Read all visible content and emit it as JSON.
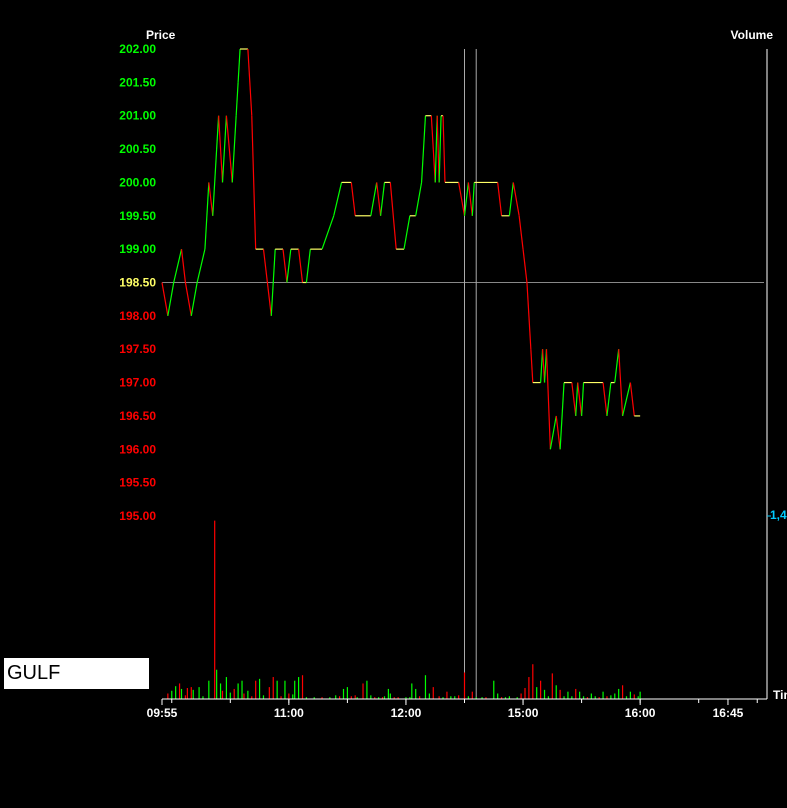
{
  "chart_data": {
    "type": "line",
    "title": "",
    "ylabel": "Price",
    "y2label": "Volume",
    "xlabel": "Time",
    "xlabel_visible": "Tim",
    "ylim": [
      195.0,
      202.0
    ],
    "y_ticks": [
      {
        "value": 202.0,
        "label": "202.00",
        "color": "#00ff00"
      },
      {
        "value": 201.5,
        "label": "201.50",
        "color": "#00ff00"
      },
      {
        "value": 201.0,
        "label": "201.00",
        "color": "#00ff00"
      },
      {
        "value": 200.5,
        "label": "200.50",
        "color": "#00ff00"
      },
      {
        "value": 200.0,
        "label": "200.00",
        "color": "#00ff00"
      },
      {
        "value": 199.5,
        "label": "199.50",
        "color": "#00ff00"
      },
      {
        "value": 199.0,
        "label": "199.00",
        "color": "#00ff00"
      },
      {
        "value": 198.5,
        "label": "198.50",
        "color": "#ffff66"
      },
      {
        "value": 198.0,
        "label": "198.00",
        "color": "#ff0000"
      },
      {
        "value": 197.5,
        "label": "197.50",
        "color": "#ff0000"
      },
      {
        "value": 197.0,
        "label": "197.00",
        "color": "#ff0000"
      },
      {
        "value": 196.5,
        "label": "196.50",
        "color": "#ff0000"
      },
      {
        "value": 196.0,
        "label": "196.00",
        "color": "#ff0000"
      },
      {
        "value": 195.5,
        "label": "195.50",
        "color": "#ff0000"
      },
      {
        "value": 195.0,
        "label": "195.00",
        "color": "#ff0000"
      }
    ],
    "reference_price": 198.5,
    "x_ticks": [
      {
        "minute": 0,
        "label": "09:55"
      },
      {
        "minute": 65,
        "label": "11:00"
      },
      {
        "minute": 125,
        "label": "12:00"
      },
      {
        "minute": 185,
        "label": "15:00"
      },
      {
        "minute": 245,
        "label": "16:00"
      },
      {
        "minute": 290,
        "label": "16:45"
      }
    ],
    "x_minute_range": [
      0,
      310
    ],
    "volume_tick_label": "1,4",
    "volume_max": 2000,
    "cursor_minutes": [
      155,
      161
    ],
    "colors": {
      "up": "#00ff00",
      "down": "#ff0000",
      "flat": "#ffff66",
      "axis": "#ffffff",
      "reference_line": "#888888",
      "volume_label": "#00ccff"
    },
    "price_series": [
      [
        0,
        198.5
      ],
      [
        3,
        198.0
      ],
      [
        6,
        198.5
      ],
      [
        10,
        199.0
      ],
      [
        12,
        198.5
      ],
      [
        15,
        198.0
      ],
      [
        18,
        198.5
      ],
      [
        22,
        199.0
      ],
      [
        24,
        200.0
      ],
      [
        26,
        199.5
      ],
      [
        28,
        200.5
      ],
      [
        29,
        201.0
      ],
      [
        31,
        200.0
      ],
      [
        33,
        201.0
      ],
      [
        36,
        200.0
      ],
      [
        38,
        201.0
      ],
      [
        39,
        201.5
      ],
      [
        40,
        202.0
      ],
      [
        44,
        202.0
      ],
      [
        46,
        201.0
      ],
      [
        48,
        199.0
      ],
      [
        52,
        199.0
      ],
      [
        56,
        198.0
      ],
      [
        58,
        199.0
      ],
      [
        62,
        199.0
      ],
      [
        64,
        198.5
      ],
      [
        66,
        199.0
      ],
      [
        70,
        199.0
      ],
      [
        72,
        198.5
      ],
      [
        74,
        198.5
      ],
      [
        76,
        199.0
      ],
      [
        82,
        199.0
      ],
      [
        88,
        199.5
      ],
      [
        92,
        200.0
      ],
      [
        97,
        200.0
      ],
      [
        99,
        199.5
      ],
      [
        107,
        199.5
      ],
      [
        110,
        200.0
      ],
      [
        112,
        199.5
      ],
      [
        114,
        200.0
      ],
      [
        117,
        200.0
      ],
      [
        120,
        199.0
      ],
      [
        124,
        199.0
      ],
      [
        127,
        199.5
      ],
      [
        130,
        199.5
      ],
      [
        133,
        200.0
      ],
      [
        135,
        201.0
      ],
      [
        138,
        201.0
      ],
      [
        139,
        200.5
      ],
      [
        140,
        200.0
      ],
      [
        141,
        201.0
      ],
      [
        142,
        200.0
      ],
      [
        143,
        201.0
      ],
      [
        144,
        201.0
      ],
      [
        145,
        200.0
      ],
      [
        152,
        200.0
      ],
      [
        155,
        199.5
      ],
      [
        157,
        200.0
      ],
      [
        159,
        199.5
      ],
      [
        160,
        200.0
      ],
      [
        172,
        200.0
      ],
      [
        174,
        199.5
      ],
      [
        178,
        199.5
      ],
      [
        180,
        200.0
      ],
      [
        183,
        199.5
      ],
      [
        185,
        199.0
      ],
      [
        187,
        198.5
      ],
      [
        189,
        197.5
      ],
      [
        190,
        197.0
      ],
      [
        194,
        197.0
      ],
      [
        195,
        197.5
      ],
      [
        196,
        197.0
      ],
      [
        197,
        197.5
      ],
      [
        199,
        196.0
      ],
      [
        202,
        196.5
      ],
      [
        204,
        196.0
      ],
      [
        206,
        197.0
      ],
      [
        210,
        197.0
      ],
      [
        212,
        196.5
      ],
      [
        213,
        197.0
      ],
      [
        215,
        196.5
      ],
      [
        216,
        197.0
      ],
      [
        226,
        197.0
      ],
      [
        228,
        196.5
      ],
      [
        230,
        197.0
      ],
      [
        232,
        197.0
      ],
      [
        234,
        197.5
      ],
      [
        236,
        196.5
      ],
      [
        240,
        197.0
      ],
      [
        242,
        196.5
      ],
      [
        245,
        196.5
      ]
    ],
    "volume_series": [
      [
        3,
        60
      ],
      [
        5,
        90
      ],
      [
        7,
        140
      ],
      [
        9,
        170
      ],
      [
        10,
        110
      ],
      [
        12,
        40
      ],
      [
        13,
        120
      ],
      [
        15,
        130
      ],
      [
        16,
        100
      ],
      [
        19,
        130
      ],
      [
        21,
        30
      ],
      [
        24,
        200
      ],
      [
        27,
        1950
      ],
      [
        28,
        320
      ],
      [
        30,
        170
      ],
      [
        31,
        90
      ],
      [
        33,
        240
      ],
      [
        35,
        70
      ],
      [
        37,
        110
      ],
      [
        39,
        170
      ],
      [
        41,
        200
      ],
      [
        42,
        60
      ],
      [
        44,
        90
      ],
      [
        46,
        30
      ],
      [
        48,
        200
      ],
      [
        50,
        220
      ],
      [
        52,
        40
      ],
      [
        55,
        130
      ],
      [
        57,
        240
      ],
      [
        59,
        200
      ],
      [
        61,
        30
      ],
      [
        63,
        200
      ],
      [
        65,
        60
      ],
      [
        67,
        50
      ],
      [
        68,
        200
      ],
      [
        70,
        240
      ],
      [
        72,
        260
      ],
      [
        74,
        20
      ],
      [
        78,
        20
      ],
      [
        82,
        20
      ],
      [
        86,
        20
      ],
      [
        89,
        40
      ],
      [
        91,
        30
      ],
      [
        93,
        110
      ],
      [
        95,
        130
      ],
      [
        97,
        30
      ],
      [
        99,
        40
      ],
      [
        100,
        20
      ],
      [
        103,
        170
      ],
      [
        105,
        200
      ],
      [
        107,
        40
      ],
      [
        109,
        20
      ],
      [
        111,
        20
      ],
      [
        113,
        20
      ],
      [
        114,
        30
      ],
      [
        116,
        110
      ],
      [
        117,
        60
      ],
      [
        119,
        20
      ],
      [
        121,
        20
      ],
      [
        125,
        20
      ],
      [
        127,
        20
      ],
      [
        128,
        170
      ],
      [
        130,
        110
      ],
      [
        132,
        30
      ],
      [
        135,
        260
      ],
      [
        137,
        60
      ],
      [
        139,
        130
      ],
      [
        142,
        30
      ],
      [
        144,
        20
      ],
      [
        146,
        80
      ],
      [
        148,
        30
      ],
      [
        150,
        30
      ],
      [
        152,
        40
      ],
      [
        155,
        290
      ],
      [
        157,
        30
      ],
      [
        159,
        80
      ],
      [
        161,
        20
      ],
      [
        164,
        20
      ],
      [
        166,
        20
      ],
      [
        170,
        200
      ],
      [
        172,
        60
      ],
      [
        174,
        20
      ],
      [
        176,
        20
      ],
      [
        178,
        30
      ],
      [
        182,
        20
      ],
      [
        184,
        60
      ],
      [
        186,
        120
      ],
      [
        188,
        240
      ],
      [
        190,
        380
      ],
      [
        192,
        130
      ],
      [
        194,
        200
      ],
      [
        196,
        100
      ],
      [
        198,
        30
      ],
      [
        200,
        280
      ],
      [
        202,
        150
      ],
      [
        204,
        100
      ],
      [
        206,
        30
      ],
      [
        208,
        80
      ],
      [
        210,
        30
      ],
      [
        212,
        110
      ],
      [
        214,
        80
      ],
      [
        216,
        30
      ],
      [
        218,
        20
      ],
      [
        220,
        60
      ],
      [
        222,
        30
      ],
      [
        224,
        20
      ],
      [
        226,
        80
      ],
      [
        228,
        30
      ],
      [
        230,
        40
      ],
      [
        232,
        60
      ],
      [
        234,
        110
      ],
      [
        236,
        150
      ],
      [
        238,
        30
      ],
      [
        240,
        80
      ],
      [
        242,
        50
      ],
      [
        244,
        30
      ],
      [
        245,
        80
      ]
    ]
  },
  "panel": {
    "symbol": "GULF"
  }
}
